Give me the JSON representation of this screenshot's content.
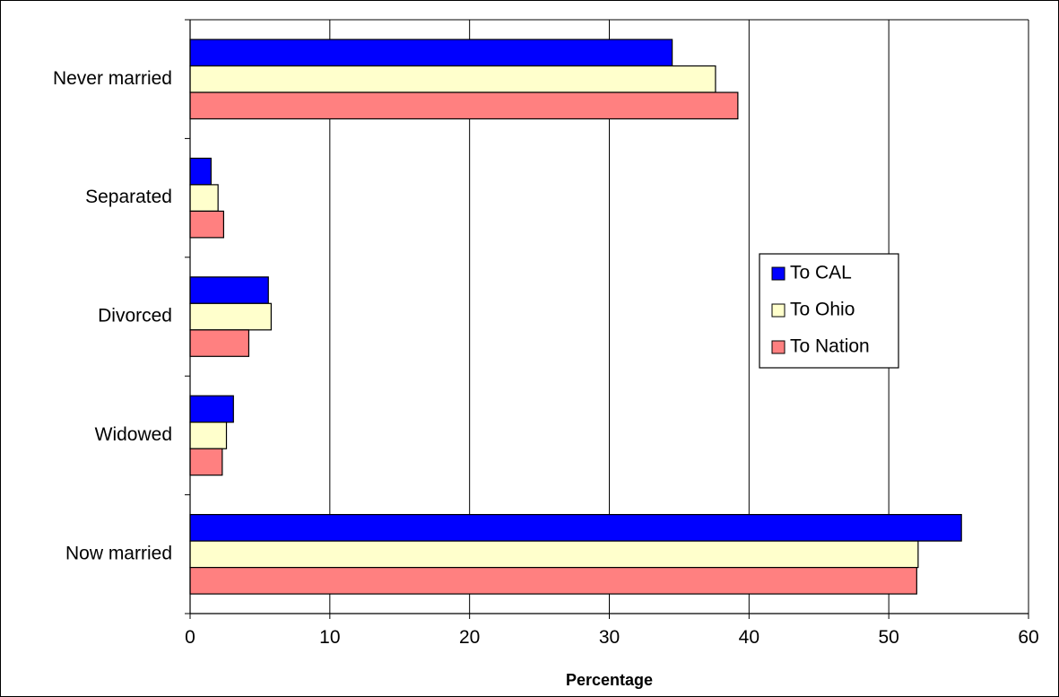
{
  "chart_data": {
    "type": "bar",
    "orientation": "horizontal",
    "categories": [
      "Never married",
      "Separated",
      "Divorced",
      "Widowed",
      "Now married"
    ],
    "series": [
      {
        "name": "To CAL",
        "color": "#0000FF",
        "values": [
          34.5,
          1.5,
          5.6,
          3.1,
          55.2
        ]
      },
      {
        "name": "To Ohio",
        "color": "#FFFFCC",
        "values": [
          37.6,
          2.0,
          5.8,
          2.6,
          52.1
        ]
      },
      {
        "name": "To Nation",
        "color": "#FF8080",
        "values": [
          39.2,
          2.4,
          4.2,
          2.3,
          52.0
        ]
      }
    ],
    "xlabel": "Percentage",
    "xlim": [
      0,
      60
    ],
    "xticks": [
      "0",
      "10",
      "20",
      "30",
      "40",
      "50",
      "60"
    ],
    "grid": "vertical",
    "legend_position": "right"
  }
}
